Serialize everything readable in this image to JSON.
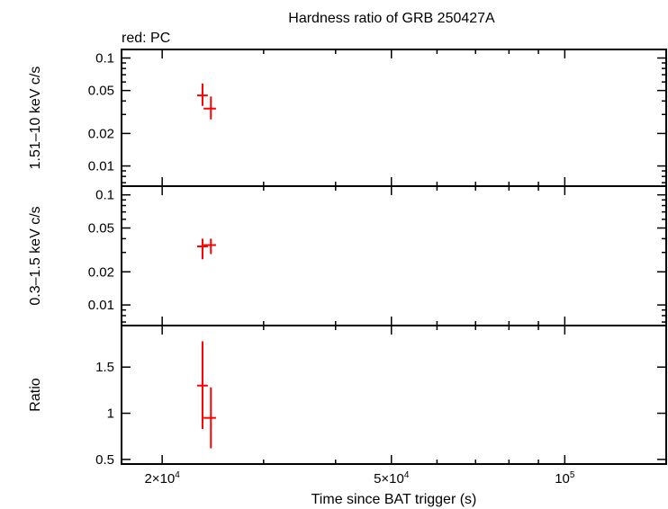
{
  "title": "Hardness ratio of GRB 250427A",
  "legend_label": "red: PC",
  "chart_data": [
    {
      "type": "scatter",
      "panel": "top",
      "ylabel": "1.51–10 keV c/s",
      "yscale": "log",
      "ylim": [
        0.0065,
        0.12
      ],
      "yticks": [
        0.01,
        0.02,
        0.05,
        0.1
      ],
      "ytick_labels": [
        "0.01",
        "0.02",
        "0.05",
        "0.1"
      ],
      "xscale": "log",
      "xlim": [
        17000,
        150000
      ],
      "color": "#ff0000",
      "series": [
        {
          "points": [
            {
              "x": 23500,
              "xerr": [
                23000,
                24000
              ],
              "y": 0.045,
              "yerr": [
                0.036,
                0.058
              ]
            },
            {
              "x": 24300,
              "xerr": [
                23600,
                24800
              ],
              "y": 0.034,
              "yerr": [
                0.027,
                0.044
              ]
            }
          ]
        }
      ]
    },
    {
      "type": "scatter",
      "panel": "middle",
      "ylabel": "0.3–1.5 keV c/s",
      "yscale": "log",
      "ylim": [
        0.0065,
        0.12
      ],
      "yticks": [
        0.01,
        0.02,
        0.05,
        0.1
      ],
      "ytick_labels": [
        "0.01",
        "0.02",
        "0.05",
        "0.1"
      ],
      "xscale": "log",
      "xlim": [
        17000,
        150000
      ],
      "color": "#ff0000",
      "series": [
        {
          "points": [
            {
              "x": 23500,
              "xerr": [
                23000,
                24000
              ],
              "y": 0.034,
              "yerr": [
                0.026,
                0.04
              ]
            },
            {
              "x": 24300,
              "xerr": [
                23600,
                24800
              ],
              "y": 0.035,
              "yerr": [
                0.029,
                0.04
              ]
            }
          ]
        }
      ]
    },
    {
      "type": "scatter",
      "panel": "bottom",
      "ylabel": "Ratio",
      "yscale": "linear",
      "ylim": [
        0.45,
        1.95
      ],
      "yticks": [
        0.5,
        1,
        1.5
      ],
      "ytick_labels": [
        "0.5",
        "1",
        "1.5"
      ],
      "xscale": "log",
      "xlim": [
        17000,
        150000
      ],
      "xlabel": "Time since BAT trigger (s)",
      "xticks": [
        20000,
        50000,
        100000
      ],
      "xtick_labels": [
        {
          "mant": "2×10",
          "exp": "4"
        },
        {
          "mant": "5×10",
          "exp": "4"
        },
        {
          "mant": "10",
          "exp": "5"
        }
      ],
      "color": "#ff0000",
      "series": [
        {
          "points": [
            {
              "x": 23500,
              "xerr": [
                23000,
                24000
              ],
              "y": 1.3,
              "yerr": [
                0.83,
                1.78
              ]
            },
            {
              "x": 24300,
              "xerr": [
                23600,
                24800
              ],
              "y": 0.95,
              "yerr": [
                0.62,
                1.28
              ]
            }
          ]
        }
      ]
    }
  ]
}
